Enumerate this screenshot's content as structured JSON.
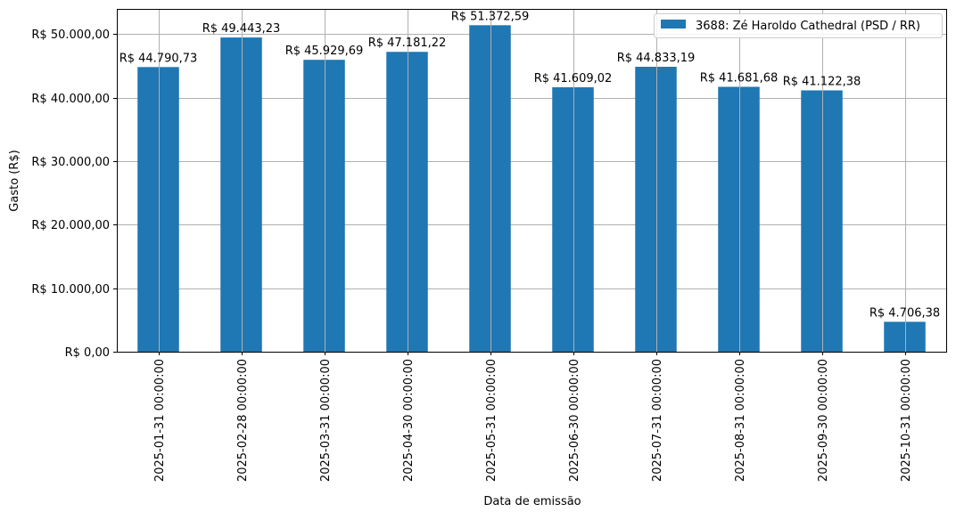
{
  "chart_data": {
    "type": "bar",
    "title": "",
    "xlabel": "Data de emissão",
    "ylabel": "Gasto (R$)",
    "categories": [
      "2025-01-31 00:00:00",
      "2025-02-28 00:00:00",
      "2025-03-31 00:00:00",
      "2025-04-30 00:00:00",
      "2025-05-31 00:00:00",
      "2025-06-30 00:00:00",
      "2025-07-31 00:00:00",
      "2025-08-31 00:00:00",
      "2025-09-30 00:00:00",
      "2025-10-31 00:00:00"
    ],
    "series": [
      {
        "name": "3688: Zé Haroldo Cathedral (PSD / RR)",
        "values": [
          44790.73,
          49443.23,
          45929.69,
          47181.22,
          51372.59,
          41609.02,
          44833.19,
          41681.68,
          41122.38,
          4706.38
        ],
        "data_labels": [
          "R$ 44.790,73",
          "R$ 49.443,23",
          "R$ 45.929,69",
          "R$ 47.181,22",
          "R$ 51.372,59",
          "R$ 41.609,02",
          "R$ 44.833,19",
          "R$ 41.681,68",
          "R$ 41.122,38",
          "R$ 4.706,38"
        ],
        "color": "#1f77b4"
      }
    ],
    "y_ticks": [
      0,
      10000,
      20000,
      30000,
      40000,
      50000
    ],
    "y_tick_labels": [
      "R$ 0,00",
      "R$ 10.000,00",
      "R$ 20.000,00",
      "R$ 30.000,00",
      "R$ 40.000,00",
      "R$ 50.000,00"
    ],
    "ylim": [
      0,
      53941.22
    ],
    "grid": true,
    "legend_position": "top-right"
  }
}
